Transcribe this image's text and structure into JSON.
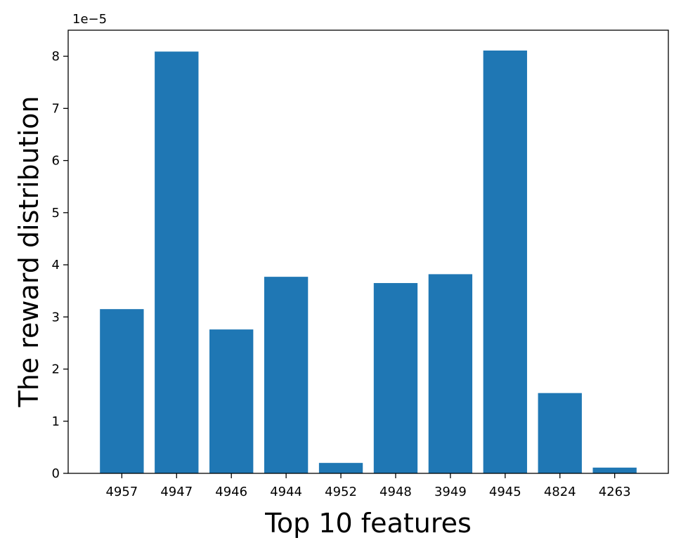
{
  "chart_data": {
    "type": "bar",
    "x_label": "Top 10 features",
    "y_label": "The reward distribution",
    "y_offset_text": "1e−5",
    "categories": [
      "4957",
      "4947",
      "4946",
      "4944",
      "4952",
      "4948",
      "3949",
      "4945",
      "4824",
      "4263"
    ],
    "values": [
      3.15,
      8.09,
      2.76,
      3.77,
      0.2,
      3.65,
      3.82,
      8.11,
      1.54,
      0.11
    ],
    "color": "#1f77b4",
    "ylim": [
      0,
      8.5
    ],
    "yticks": [
      0,
      1,
      2,
      3,
      4,
      5,
      6,
      7,
      8
    ],
    "grid": false
  }
}
